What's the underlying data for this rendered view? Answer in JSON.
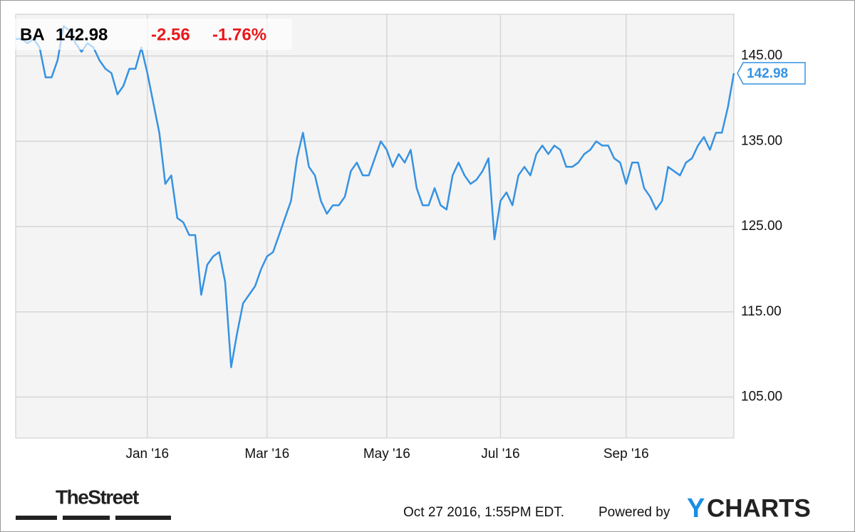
{
  "header": {
    "ticker": "BA",
    "price": "142.98",
    "change": "-2.56",
    "change_percent": "-1.76%"
  },
  "chart_data": {
    "type": "line",
    "categories": [
      null,
      null,
      null,
      null,
      null,
      null,
      null,
      null,
      null,
      null,
      null,
      null,
      null,
      null,
      null,
      null,
      null,
      null,
      null,
      null,
      null,
      null,
      "Jan '16",
      null,
      null,
      null,
      null,
      null,
      null,
      null,
      null,
      null,
      null,
      null,
      null,
      null,
      null,
      null,
      null,
      null,
      null,
      null,
      "Mar '16",
      null,
      null,
      null,
      null,
      null,
      null,
      null,
      null,
      null,
      null,
      null,
      null,
      null,
      null,
      null,
      null,
      null,
      null,
      null,
      "May '16",
      null,
      null,
      null,
      null,
      null,
      null,
      null,
      null,
      null,
      null,
      null,
      null,
      null,
      null,
      null,
      null,
      null,
      null,
      "Jul '16",
      null,
      null,
      null,
      null,
      null,
      null,
      null,
      null,
      null,
      null,
      null,
      null,
      null,
      null,
      null,
      null,
      null,
      null,
      null,
      null,
      "Sep '16",
      null,
      null,
      null,
      null,
      null,
      null,
      null,
      null,
      null,
      null,
      null,
      null,
      null,
      null,
      null,
      null,
      null,
      null
    ],
    "series": [
      {
        "name": "BA",
        "color": "#3592e2",
        "values": [
          147,
          147,
          146.5,
          147,
          146,
          142.5,
          142.5,
          144.5,
          148.5,
          148,
          146.5,
          145.5,
          146.5,
          146,
          144.5,
          143.5,
          143,
          140.5,
          141.5,
          143.5,
          143.5,
          146,
          143,
          139.5,
          136,
          130,
          131,
          126,
          125.5,
          124,
          124,
          117,
          120.5,
          121.5,
          122,
          118.5,
          108.5,
          112.5,
          116,
          117,
          118,
          120,
          121.5,
          122,
          124,
          126,
          128,
          133,
          136,
          132,
          131,
          128,
          126.5,
          127.5,
          127.5,
          128.5,
          131.5,
          132.5,
          131,
          131,
          133,
          135,
          134,
          132,
          133.5,
          132.5,
          134,
          129.5,
          127.5,
          127.5,
          129.5,
          127.5,
          127,
          131,
          132.5,
          131,
          130,
          130.5,
          131.5,
          133,
          123.5,
          128,
          129,
          127.5,
          131,
          132,
          131,
          133.5,
          134.5,
          133.5,
          134.5,
          134,
          132,
          132,
          132.5,
          133.5,
          134,
          135,
          134.5,
          134.5,
          133,
          132.5,
          130,
          132.5,
          132.5,
          129.5,
          128.5,
          127,
          128,
          132,
          131.5,
          131,
          132.5,
          133,
          134.5,
          135.5,
          134,
          136,
          136,
          139,
          142.98
        ]
      }
    ],
    "ylim": [
      100.2,
      149.9
    ],
    "yticks": [
      {
        "value": 105,
        "label": "105.00"
      },
      {
        "value": 115,
        "label": "115.00"
      },
      {
        "value": 125,
        "label": "125.00"
      },
      {
        "value": 135,
        "label": "135.00"
      },
      {
        "value": 145,
        "label": "145.00"
      }
    ],
    "grid": true
  },
  "footer": {
    "brand": "TheStreet",
    "timestamp": "Oct 27 2016, 1:55PM EDT.",
    "powered_by": "Powered by",
    "logo_y": "Y",
    "logo_rest": "CHARTS"
  }
}
